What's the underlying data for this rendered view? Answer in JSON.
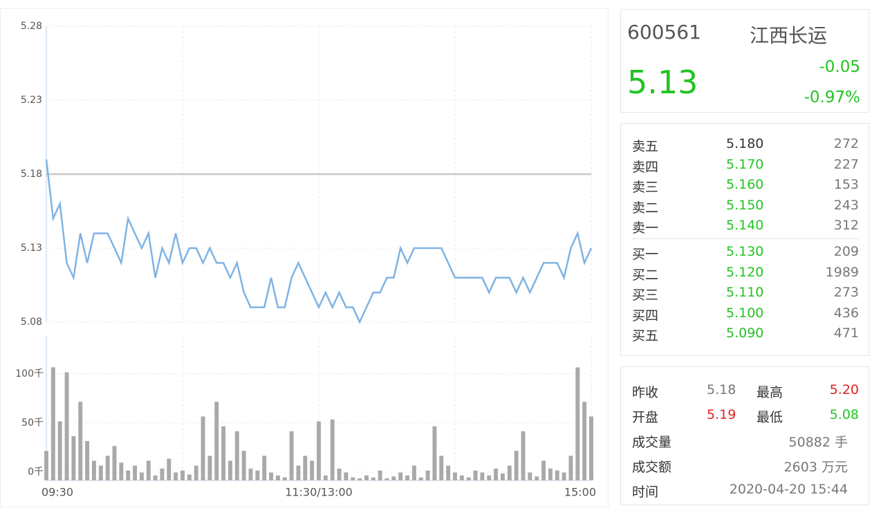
{
  "chart_data": {
    "type": "line",
    "categories": [
      "09:30",
      null,
      null,
      null,
      null,
      null,
      null,
      null,
      null,
      null,
      null,
      null,
      null,
      null,
      null,
      null,
      null,
      null,
      null,
      null,
      null,
      null,
      null,
      null,
      null,
      null,
      null,
      null,
      null,
      null,
      null,
      null,
      null,
      null,
      null,
      null,
      null,
      null,
      null,
      null,
      "11:30/13:00",
      null,
      null,
      null,
      null,
      null,
      null,
      null,
      null,
      null,
      null,
      null,
      null,
      null,
      null,
      null,
      null,
      null,
      null,
      null,
      null,
      null,
      null,
      null,
      null,
      null,
      null,
      null,
      null,
      null,
      null,
      null,
      null,
      null,
      null,
      null,
      null,
      null,
      null,
      null,
      "15:00"
    ],
    "series": [
      {
        "color": "#7fb3e3",
        "values": [
          5.19,
          5.15,
          5.16,
          5.12,
          5.11,
          5.14,
          5.12,
          5.14,
          5.14,
          5.14,
          5.13,
          5.12,
          5.15,
          5.14,
          5.13,
          5.14,
          5.11,
          5.13,
          5.12,
          5.14,
          5.12,
          5.13,
          5.13,
          5.12,
          5.13,
          5.12,
          5.12,
          5.11,
          5.12,
          5.1,
          5.09,
          5.09,
          5.09,
          5.11,
          5.09,
          5.09,
          5.11,
          5.12,
          5.11,
          5.1,
          5.09,
          5.1,
          5.09,
          5.1,
          5.09,
          5.09,
          5.08,
          5.09,
          5.1,
          5.1,
          5.11,
          5.11,
          5.13,
          5.12,
          5.13,
          5.13,
          5.13,
          5.13,
          5.13,
          5.12,
          5.11,
          5.11,
          5.11,
          5.11,
          5.11,
          5.1,
          5.11,
          5.11,
          5.11,
          5.1,
          5.11,
          5.1,
          5.11,
          5.12,
          5.12,
          5.12,
          5.11,
          5.13,
          5.14,
          5.12,
          5.13
        ]
      },
      {
        "type": "bar",
        "axis": "y2",
        "color": "#a9a9a9",
        "values": [
          30000,
          115000,
          60000,
          110000,
          45000,
          80000,
          40000,
          20000,
          15000,
          25000,
          35000,
          18000,
          10000,
          15000,
          8000,
          20000,
          5000,
          12000,
          22000,
          8000,
          10000,
          6000,
          15000,
          65000,
          25000,
          80000,
          55000,
          20000,
          50000,
          30000,
          12000,
          10000,
          25000,
          8000,
          5000,
          3000,
          50000,
          15000,
          25000,
          20000,
          60000,
          5000,
          62000,
          12000,
          8000,
          3000,
          2000,
          5000,
          3000,
          10000,
          2000,
          4000,
          8000,
          5000,
          15000,
          3000,
          10000,
          55000,
          25000,
          15000,
          8000,
          5000,
          3000,
          10000,
          8000,
          5000,
          12000,
          7000,
          15000,
          30000,
          50000,
          8000,
          4000,
          20000,
          12000,
          10000,
          8000,
          25000,
          115000,
          80000,
          65000
        ]
      }
    ],
    "baseline": 5.18,
    "ylim": [
      5.08,
      5.28
    ],
    "yticks": [
      5.08,
      5.13,
      5.18,
      5.23,
      5.28
    ],
    "y2lim": [
      0,
      147000
    ],
    "y2ticks": [
      {
        "value": 0,
        "label": "0千"
      },
      {
        "value": 50000,
        "label": "50千"
      },
      {
        "value": 100000,
        "label": "100千"
      }
    ],
    "grid": true
  },
  "quote": {
    "code": "600561",
    "name": "江西长运",
    "price": "5.13",
    "change": "-0.05",
    "percent": "-0.97%"
  },
  "order_book": {
    "asks": [
      [
        "卖五",
        "5.180",
        "272"
      ],
      [
        "卖四",
        "5.170",
        "227"
      ],
      [
        "卖三",
        "5.160",
        "153"
      ],
      [
        "卖二",
        "5.150",
        "243"
      ],
      [
        "卖一",
        "5.140",
        "312"
      ]
    ],
    "bids": [
      [
        "买一",
        "5.130",
        "209"
      ],
      [
        "买二",
        "5.120",
        "1989"
      ],
      [
        "买三",
        "5.110",
        "273"
      ],
      [
        "买四",
        "5.100",
        "436"
      ],
      [
        "买五",
        "5.090",
        "471"
      ]
    ]
  },
  "stats": {
    "prev_close_label": "昨收",
    "prev_close": "5.18",
    "high_label": "最高",
    "high": "5.20",
    "open_label": "开盘",
    "open": "5.19",
    "low_label": "最低",
    "low": "5.08",
    "volume_label": "成交量",
    "volume": "50882 手",
    "amount_label": "成交额",
    "amount": "2603 万元",
    "time_label": "时间",
    "time": "2020-04-20 15:44"
  }
}
